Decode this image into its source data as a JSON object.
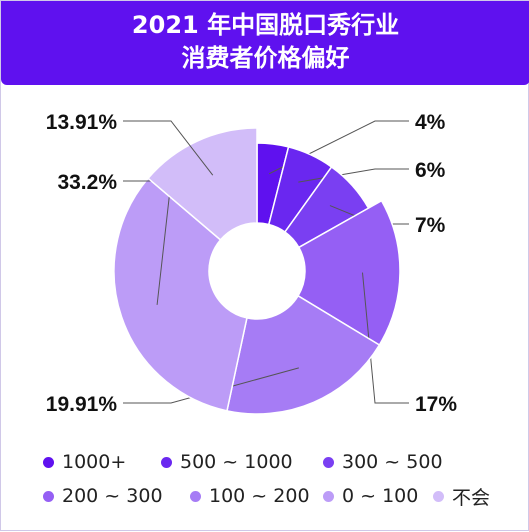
{
  "title": {
    "line1": "2021 年中国脱口秀行业",
    "line2": "消费者价格偏好"
  },
  "chart_data": {
    "type": "pie",
    "style": "donut",
    "categories": [
      "1000+",
      "500 ~ 1000",
      "300 ~ 500",
      "200 ~ 300",
      "100 ~ 200",
      "0 ~ 100",
      "不会"
    ],
    "values": [
      4,
      6,
      7,
      17,
      19.91,
      33.2,
      13.91
    ],
    "labels": [
      "4%",
      "6%",
      "7%",
      "17%",
      "19.91%",
      "33.2%",
      "13.91%"
    ],
    "colors": [
      "#5f11ef",
      "#6a27f0",
      "#7a3ff2",
      "#955ff4",
      "#a67cf5",
      "#bc9cf7",
      "#d2bdf9"
    ],
    "legend_position": "bottom"
  },
  "legend": {
    "items": [
      {
        "label": "1000+",
        "color": "#5f11ef"
      },
      {
        "label": "500 ~ 1000",
        "color": "#6a27f0"
      },
      {
        "label": "300 ~ 500",
        "color": "#7a3ff2"
      },
      {
        "label": "200 ~ 300",
        "color": "#955ff4"
      },
      {
        "label": "100 ~ 200",
        "color": "#a67cf5"
      },
      {
        "label": "0 ~ 100",
        "color": "#bc9cf7"
      },
      {
        "label": "不会",
        "color": "#d2bdf9"
      }
    ]
  }
}
